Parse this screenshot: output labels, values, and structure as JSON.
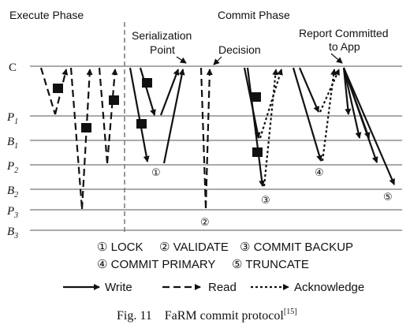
{
  "phases": {
    "execute": "Execute Phase",
    "commit": "Commit Phase"
  },
  "rows": [
    {
      "name": "C",
      "sub": ""
    },
    {
      "name": "P",
      "sub": "1"
    },
    {
      "name": "B",
      "sub": "1"
    },
    {
      "name": "P",
      "sub": "2"
    },
    {
      "name": "B",
      "sub": "2"
    },
    {
      "name": "P",
      "sub": "3"
    },
    {
      "name": "B",
      "sub": "3"
    }
  ],
  "annotations": {
    "serialization_line1": "Serialization",
    "serialization_line2": "Point",
    "decision": "Decision",
    "report_line1": "Report Committed",
    "report_line2": "to App"
  },
  "markers": [
    "①",
    "②",
    "③",
    "④",
    "⑤"
  ],
  "steps": [
    {
      "num": "①",
      "label": "LOCK"
    },
    {
      "num": "②",
      "label": "VALIDATE"
    },
    {
      "num": "③",
      "label": "COMMIT BACKUP"
    },
    {
      "num": "④",
      "label": "COMMIT PRIMARY"
    },
    {
      "num": "⑤",
      "label": "TRUNCATE"
    }
  ],
  "legend": {
    "write": "Write",
    "read": "Read",
    "ack": "Acknowledge"
  },
  "caption": {
    "prefix": "Fig. 11",
    "title": "FaRM commit protocol",
    "ref": "[15]"
  }
}
